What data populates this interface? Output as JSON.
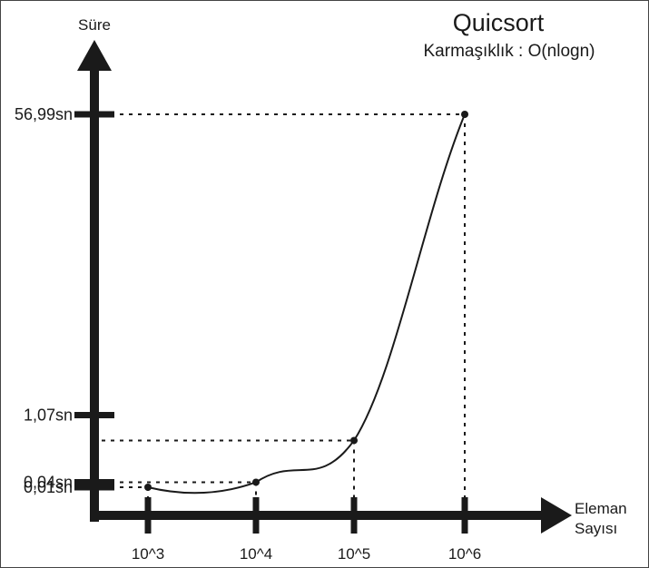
{
  "chart_data": {
    "type": "line",
    "title": "Quicsort",
    "subtitle": "Karmaşıklık : O(nlogn)",
    "ylabel": "Süre",
    "xlabel": [
      "Eleman",
      "Sayısı"
    ],
    "x": [
      "10^3",
      "10^4",
      "10^5",
      "10^6"
    ],
    "y": [
      0.01,
      0.04,
      1.07,
      56.99
    ],
    "y_tick_labels": [
      "0,01sn",
      "0,04sn",
      "1,07sn",
      "56,99sn"
    ],
    "grid": false,
    "legend": "none",
    "colors": {
      "axis": "#1a1a1a",
      "line": "#1a1a1a",
      "background": "#ffffff"
    }
  }
}
